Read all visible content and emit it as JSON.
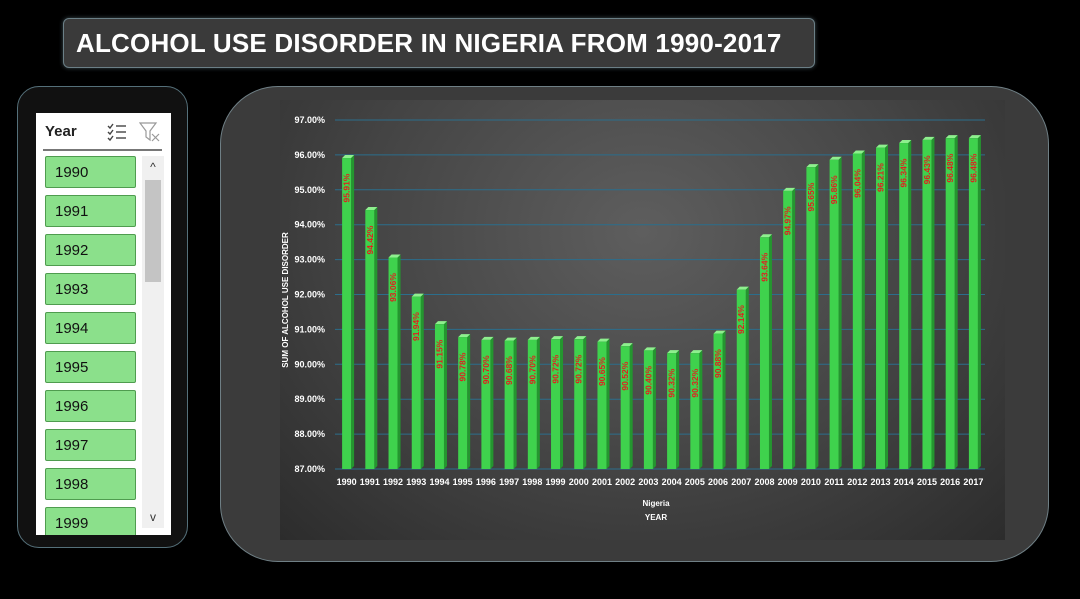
{
  "title": "ALCOHOL USE DISORDER IN NIGERIA FROM 1990-2017",
  "slicer": {
    "title": "Year",
    "multiselect_icon": "multi-select-icon",
    "clear_filter_icon": "clear-filter-icon",
    "scroll_up": "^",
    "scroll_down": "v",
    "items": [
      "1990",
      "1991",
      "1992",
      "1993",
      "1994",
      "1995",
      "1996",
      "1997",
      "1998",
      "1999"
    ]
  },
  "colors": {
    "bar": "#3fd24d",
    "bar_top": "#8ef08e",
    "bar_side": "#24962f",
    "label": "#e01f1f",
    "gridline": "#2b6e8c",
    "slicer_item": "#8be08b"
  },
  "chart_data": {
    "type": "bar",
    "title": "",
    "xlabel": "YEAR",
    "ylabel": "SUM OF ALCOHOL USE DISORDER",
    "series_label": "Nigeria",
    "categories": [
      "1990",
      "1991",
      "1992",
      "1993",
      "1994",
      "1995",
      "1996",
      "1997",
      "1998",
      "1999",
      "2000",
      "2001",
      "2002",
      "2003",
      "2004",
      "2005",
      "2006",
      "2007",
      "2008",
      "2009",
      "2010",
      "2011",
      "2012",
      "2013",
      "2014",
      "2015",
      "2016",
      "2017"
    ],
    "values": [
      95.91,
      94.42,
      93.06,
      91.94,
      91.15,
      90.78,
      90.7,
      90.68,
      90.7,
      90.72,
      90.72,
      90.65,
      90.52,
      90.4,
      90.32,
      90.32,
      90.88,
      92.14,
      93.64,
      94.97,
      95.65,
      95.86,
      96.04,
      96.21,
      96.34,
      96.43,
      96.48,
      96.48
    ],
    "data_labels": [
      "95.91%",
      "94.42%",
      "93.06%",
      "91.94%",
      "91.15%",
      "90.78%",
      "90.70%",
      "90.68%",
      "90.70%",
      "90.72%",
      "90.72%",
      "90.65%",
      "90.52%",
      "90.40%",
      "90.32%",
      "90.32%",
      "90.88%",
      "92.14%",
      "93.64%",
      "94.97%",
      "95.65%",
      "95.86%",
      "96.04%",
      "96.21%",
      "96.34%",
      "96.43%",
      "96.48%",
      "96.48%"
    ],
    "ylim": [
      87,
      97
    ],
    "yticks": [
      "87.00%",
      "88.00%",
      "89.00%",
      "90.00%",
      "91.00%",
      "92.00%",
      "93.00%",
      "94.00%",
      "95.00%",
      "96.00%",
      "97.00%"
    ],
    "grid": true,
    "legend": "none"
  }
}
